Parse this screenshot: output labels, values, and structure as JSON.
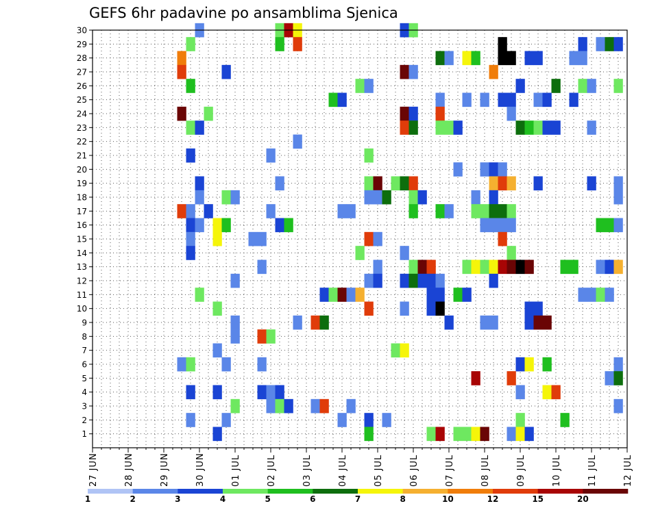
{
  "chart_data": {
    "type": "heatmap",
    "title": "GEFS 6hr padavine po ansamblima Sjenica",
    "xlabel": "",
    "ylabel": "",
    "x_ticks": [
      "27 JUN",
      "28 JUN",
      "29 JUN",
      "30 JUN",
      "01 JUL",
      "02 JUL",
      "03 JUL",
      "04 JUL",
      "05 JUL",
      "06 JUL",
      "07 JUL",
      "08 JUL",
      "09 JUL",
      "10 JUL",
      "11 JUL",
      "12 JUL"
    ],
    "x_unit": "6-hour step from 27 JUN 00Z",
    "xlim": [
      0,
      60
    ],
    "y_ticks": [
      1,
      2,
      3,
      4,
      5,
      6,
      7,
      8,
      9,
      10,
      11,
      12,
      13,
      14,
      15,
      16,
      17,
      18,
      19,
      20,
      21,
      22,
      23,
      24,
      25,
      26,
      27,
      28,
      29,
      30
    ],
    "ylim": [
      0,
      30
    ],
    "grid": true,
    "legend": {
      "position": "bottom",
      "labels": [
        "1",
        "2",
        "3",
        "4",
        "5",
        "6",
        "7",
        "8",
        "10",
        "12",
        "15",
        "20"
      ],
      "colors": [
        "#b0c4f5",
        "#5a86e8",
        "#1a44d4",
        "#6ee860",
        "#1fbf1f",
        "#0d6e0d",
        "#f5f50a",
        "#f5b030",
        "#f07d0a",
        "#e03c0a",
        "#a80505",
        "#6a0505"
      ]
    },
    "cells": [
      [
        12,
        30,
        1
      ],
      [
        21,
        30,
        3
      ],
      [
        22,
        30,
        10
      ],
      [
        23,
        30,
        6
      ],
      [
        35,
        30,
        2
      ],
      [
        36,
        30,
        3
      ],
      [
        11,
        29,
        3
      ],
      [
        21,
        29,
        4
      ],
      [
        23,
        29,
        9
      ],
      [
        46,
        29,
        12
      ],
      [
        55,
        29,
        2
      ],
      [
        57,
        29,
        1
      ],
      [
        58,
        29,
        5
      ],
      [
        59,
        29,
        2
      ],
      [
        10,
        28,
        8
      ],
      [
        39,
        28,
        5
      ],
      [
        40,
        28,
        1
      ],
      [
        42,
        28,
        6
      ],
      [
        43,
        28,
        4
      ],
      [
        46,
        28,
        12
      ],
      [
        47,
        28,
        12
      ],
      [
        49,
        28,
        2
      ],
      [
        50,
        28,
        2
      ],
      [
        54,
        28,
        1
      ],
      [
        55,
        28,
        1
      ],
      [
        10,
        27,
        9
      ],
      [
        15,
        27,
        2
      ],
      [
        35,
        27,
        11
      ],
      [
        36,
        27,
        1
      ],
      [
        45,
        27,
        8
      ],
      [
        11,
        26,
        4
      ],
      [
        30,
        26,
        3
      ],
      [
        31,
        26,
        1
      ],
      [
        48,
        26,
        2
      ],
      [
        52,
        26,
        5
      ],
      [
        55,
        26,
        3
      ],
      [
        56,
        26,
        1
      ],
      [
        59,
        26,
        3
      ],
      [
        27,
        25,
        4
      ],
      [
        28,
        25,
        2
      ],
      [
        39,
        25,
        1
      ],
      [
        42,
        25,
        1
      ],
      [
        44,
        25,
        1
      ],
      [
        46,
        25,
        2
      ],
      [
        47,
        25,
        2
      ],
      [
        50,
        25,
        1
      ],
      [
        51,
        25,
        2
      ],
      [
        54,
        25,
        2
      ],
      [
        10,
        24,
        11
      ],
      [
        13,
        24,
        3
      ],
      [
        35,
        24,
        11
      ],
      [
        36,
        24,
        2
      ],
      [
        39,
        24,
        9
      ],
      [
        47,
        24,
        1
      ],
      [
        11,
        23,
        3
      ],
      [
        12,
        23,
        2
      ],
      [
        35,
        23,
        9
      ],
      [
        36,
        23,
        5
      ],
      [
        39,
        23,
        3
      ],
      [
        40,
        23,
        3
      ],
      [
        41,
        23,
        2
      ],
      [
        48,
        23,
        5
      ],
      [
        49,
        23,
        4
      ],
      [
        50,
        23,
        3
      ],
      [
        51,
        23,
        2
      ],
      [
        52,
        23,
        2
      ],
      [
        56,
        23,
        1
      ],
      [
        23,
        22,
        1
      ],
      [
        11,
        21,
        2
      ],
      [
        20,
        21,
        1
      ],
      [
        31,
        21,
        3
      ],
      [
        41,
        20,
        1
      ],
      [
        44,
        20,
        1
      ],
      [
        45,
        20,
        2
      ],
      [
        46,
        20,
        1
      ],
      [
        12,
        19,
        2
      ],
      [
        21,
        19,
        1
      ],
      [
        31,
        19,
        3
      ],
      [
        32,
        19,
        11
      ],
      [
        34,
        19,
        3
      ],
      [
        35,
        19,
        5
      ],
      [
        36,
        19,
        9
      ],
      [
        45,
        19,
        7
      ],
      [
        46,
        19,
        9
      ],
      [
        47,
        19,
        7
      ],
      [
        50,
        19,
        2
      ],
      [
        56,
        19,
        2
      ],
      [
        59,
        19,
        1
      ],
      [
        12,
        18,
        1
      ],
      [
        15,
        18,
        3
      ],
      [
        16,
        18,
        1
      ],
      [
        31,
        18,
        1
      ],
      [
        32,
        18,
        1
      ],
      [
        33,
        18,
        5
      ],
      [
        36,
        18,
        3
      ],
      [
        37,
        18,
        2
      ],
      [
        43,
        18,
        1
      ],
      [
        45,
        18,
        2
      ],
      [
        59,
        18,
        1
      ],
      [
        10,
        17,
        9
      ],
      [
        11,
        17,
        1
      ],
      [
        13,
        17,
        2
      ],
      [
        20,
        17,
        1
      ],
      [
        28,
        17,
        1
      ],
      [
        29,
        17,
        1
      ],
      [
        36,
        17,
        4
      ],
      [
        39,
        17,
        4
      ],
      [
        40,
        17,
        1
      ],
      [
        43,
        17,
        3
      ],
      [
        44,
        17,
        3
      ],
      [
        45,
        17,
        5
      ],
      [
        46,
        17,
        5
      ],
      [
        47,
        17,
        3
      ],
      [
        11,
        16,
        2
      ],
      [
        12,
        16,
        1
      ],
      [
        14,
        16,
        6
      ],
      [
        15,
        16,
        4
      ],
      [
        21,
        16,
        2
      ],
      [
        22,
        16,
        4
      ],
      [
        44,
        16,
        1
      ],
      [
        45,
        16,
        1
      ],
      [
        46,
        16,
        1
      ],
      [
        47,
        16,
        1
      ],
      [
        57,
        16,
        4
      ],
      [
        58,
        16,
        4
      ],
      [
        59,
        16,
        1
      ],
      [
        11,
        15,
        1
      ],
      [
        14,
        15,
        6
      ],
      [
        18,
        15,
        1
      ],
      [
        19,
        15,
        1
      ],
      [
        31,
        15,
        9
      ],
      [
        32,
        15,
        1
      ],
      [
        46,
        15,
        9
      ],
      [
        11,
        14,
        2
      ],
      [
        30,
        14,
        3
      ],
      [
        35,
        14,
        1
      ],
      [
        47,
        14,
        3
      ],
      [
        19,
        13,
        1
      ],
      [
        32,
        13,
        1
      ],
      [
        36,
        13,
        3
      ],
      [
        37,
        13,
        11
      ],
      [
        38,
        13,
        9
      ],
      [
        42,
        13,
        3
      ],
      [
        43,
        13,
        6
      ],
      [
        44,
        13,
        3
      ],
      [
        45,
        13,
        6
      ],
      [
        46,
        13,
        10
      ],
      [
        47,
        13,
        11
      ],
      [
        48,
        13,
        12
      ],
      [
        49,
        13,
        11
      ],
      [
        53,
        13,
        4
      ],
      [
        54,
        13,
        4
      ],
      [
        57,
        13,
        1
      ],
      [
        58,
        13,
        2
      ],
      [
        59,
        13,
        7
      ],
      [
        16,
        12,
        1
      ],
      [
        31,
        12,
        1
      ],
      [
        32,
        12,
        2
      ],
      [
        35,
        12,
        2
      ],
      [
        36,
        12,
        5
      ],
      [
        37,
        12,
        2
      ],
      [
        38,
        12,
        2
      ],
      [
        39,
        12,
        1
      ],
      [
        45,
        12,
        2
      ],
      [
        12,
        11,
        3
      ],
      [
        26,
        11,
        2
      ],
      [
        27,
        11,
        3
      ],
      [
        28,
        11,
        11
      ],
      [
        29,
        11,
        1
      ],
      [
        30,
        11,
        7
      ],
      [
        38,
        11,
        2
      ],
      [
        39,
        11,
        2
      ],
      [
        41,
        11,
        4
      ],
      [
        42,
        11,
        2
      ],
      [
        55,
        11,
        1
      ],
      [
        56,
        11,
        1
      ],
      [
        57,
        11,
        3
      ],
      [
        58,
        11,
        1
      ],
      [
        14,
        10,
        3
      ],
      [
        31,
        10,
        9
      ],
      [
        35,
        10,
        1
      ],
      [
        38,
        10,
        2
      ],
      [
        39,
        10,
        12
      ],
      [
        49,
        10,
        2
      ],
      [
        50,
        10,
        2
      ],
      [
        16,
        9,
        1
      ],
      [
        23,
        9,
        1
      ],
      [
        25,
        9,
        9
      ],
      [
        26,
        9,
        5
      ],
      [
        40,
        9,
        2
      ],
      [
        44,
        9,
        1
      ],
      [
        45,
        9,
        1
      ],
      [
        49,
        9,
        2
      ],
      [
        50,
        9,
        11
      ],
      [
        51,
        9,
        11
      ],
      [
        16,
        8,
        1
      ],
      [
        19,
        8,
        9
      ],
      [
        20,
        8,
        3
      ],
      [
        14,
        7,
        1
      ],
      [
        34,
        7,
        3
      ],
      [
        35,
        7,
        6
      ],
      [
        10,
        6,
        1
      ],
      [
        11,
        6,
        3
      ],
      [
        15,
        6,
        1
      ],
      [
        19,
        6,
        1
      ],
      [
        48,
        6,
        2
      ],
      [
        49,
        6,
        6
      ],
      [
        51,
        6,
        4
      ],
      [
        59,
        6,
        1
      ],
      [
        43,
        5,
        10
      ],
      [
        47,
        5,
        9
      ],
      [
        58,
        5,
        1
      ],
      [
        59,
        5,
        5
      ],
      [
        11,
        4,
        2
      ],
      [
        14,
        4,
        2
      ],
      [
        19,
        4,
        2
      ],
      [
        20,
        4,
        1
      ],
      [
        21,
        4,
        2
      ],
      [
        48,
        4,
        1
      ],
      [
        51,
        4,
        6
      ],
      [
        52,
        4,
        9
      ],
      [
        16,
        3,
        3
      ],
      [
        20,
        3,
        1
      ],
      [
        21,
        3,
        3
      ],
      [
        22,
        3,
        2
      ],
      [
        25,
        3,
        1
      ],
      [
        26,
        3,
        9
      ],
      [
        29,
        3,
        1
      ],
      [
        59,
        3,
        1
      ],
      [
        11,
        2,
        1
      ],
      [
        15,
        2,
        1
      ],
      [
        28,
        2,
        1
      ],
      [
        31,
        2,
        2
      ],
      [
        33,
        2,
        1
      ],
      [
        48,
        2,
        3
      ],
      [
        53,
        2,
        4
      ],
      [
        14,
        1,
        2
      ],
      [
        31,
        1,
        4
      ],
      [
        38,
        1,
        3
      ],
      [
        39,
        1,
        10
      ],
      [
        41,
        1,
        3
      ],
      [
        42,
        1,
        3
      ],
      [
        43,
        1,
        6
      ],
      [
        44,
        1,
        11
      ],
      [
        47,
        1,
        1
      ],
      [
        48,
        1,
        6
      ],
      [
        49,
        1,
        2
      ]
    ]
  }
}
